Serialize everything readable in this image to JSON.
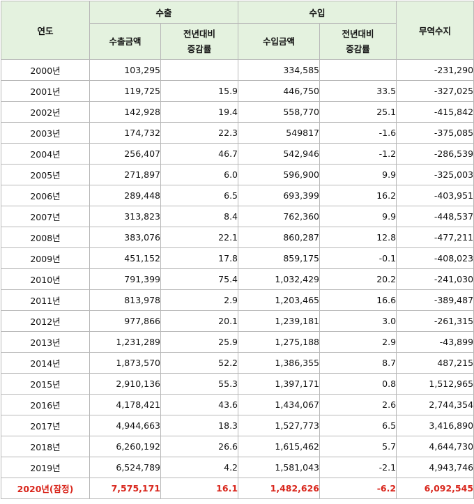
{
  "headers": {
    "year": "연도",
    "export": "수출",
    "import": "수입",
    "balance": "무역수지",
    "export_amount": "수출금액",
    "import_amount": "수입금액",
    "yoy_line1": "전년대비",
    "yoy_line2": "증감률"
  },
  "rows": [
    {
      "year": "2000년",
      "export": "103,295",
      "export_yoy": "",
      "import": "334,585",
      "import_yoy": "",
      "balance": "-231,290"
    },
    {
      "year": "2001년",
      "export": "119,725",
      "export_yoy": "15.9",
      "import": "446,750",
      "import_yoy": "33.5",
      "balance": "-327,025"
    },
    {
      "year": "2002년",
      "export": "142,928",
      "export_yoy": "19.4",
      "import": "558,770",
      "import_yoy": "25.1",
      "balance": "-415,842"
    },
    {
      "year": "2003년",
      "export": "174,732",
      "export_yoy": "22.3",
      "import": "549817",
      "import_yoy": "-1.6",
      "balance": "-375,085"
    },
    {
      "year": "2004년",
      "export": "256,407",
      "export_yoy": "46.7",
      "import": "542,946",
      "import_yoy": "-1.2",
      "balance": "-286,539"
    },
    {
      "year": "2005년",
      "export": "271,897",
      "export_yoy": "6.0",
      "import": "596,900",
      "import_yoy": "9.9",
      "balance": "-325,003"
    },
    {
      "year": "2006년",
      "export": "289,448",
      "export_yoy": "6.5",
      "import": "693,399",
      "import_yoy": "16.2",
      "balance": "-403,951"
    },
    {
      "year": "2007년",
      "export": "313,823",
      "export_yoy": "8.4",
      "import": "762,360",
      "import_yoy": "9.9",
      "balance": "-448,537"
    },
    {
      "year": "2008년",
      "export": "383,076",
      "export_yoy": "22.1",
      "import": "860,287",
      "import_yoy": "12.8",
      "balance": "-477,211"
    },
    {
      "year": "2009년",
      "export": "451,152",
      "export_yoy": "17.8",
      "import": "859,175",
      "import_yoy": "-0.1",
      "balance": "-408,023"
    },
    {
      "year": "2010년",
      "export": "791,399",
      "export_yoy": "75.4",
      "import": "1,032,429",
      "import_yoy": "20.2",
      "balance": "-241,030"
    },
    {
      "year": "2011년",
      "export": "813,978",
      "export_yoy": "2.9",
      "import": "1,203,465",
      "import_yoy": "16.6",
      "balance": "-389,487"
    },
    {
      "year": "2012년",
      "export": "977,866",
      "export_yoy": "20.1",
      "import": "1,239,181",
      "import_yoy": "3.0",
      "balance": "-261,315"
    },
    {
      "year": "2013년",
      "export": "1,231,289",
      "export_yoy": "25.9",
      "import": "1,275,188",
      "import_yoy": "2.9",
      "balance": "-43,899"
    },
    {
      "year": "2014년",
      "export": "1,873,570",
      "export_yoy": "52.2",
      "import": "1,386,355",
      "import_yoy": "8.7",
      "balance": "487,215"
    },
    {
      "year": "2015년",
      "export": "2,910,136",
      "export_yoy": "55.3",
      "import": "1,397,171",
      "import_yoy": "0.8",
      "balance": "1,512,965"
    },
    {
      "year": "2016년",
      "export": "4,178,421",
      "export_yoy": "43.6",
      "import": "1,434,067",
      "import_yoy": "2.6",
      "balance": "2,744,354"
    },
    {
      "year": "2017년",
      "export": "4,944,663",
      "export_yoy": "18.3",
      "import": "1,527,773",
      "import_yoy": "6.5",
      "balance": "3,416,890"
    },
    {
      "year": "2018년",
      "export": "6,260,192",
      "export_yoy": "26.6",
      "import": "1,615,462",
      "import_yoy": "5.7",
      "balance": "4,644,730"
    },
    {
      "year": "2019년",
      "export": "6,524,789",
      "export_yoy": "4.2",
      "import": "1,581,043",
      "import_yoy": "-2.1",
      "balance": "4,943,746"
    },
    {
      "year": "2020년(잠정)",
      "export": "7,575,171",
      "export_yoy": "16.1",
      "import": "1,482,626",
      "import_yoy": "-6.2",
      "balance": "6,092,545",
      "highlight": true
    }
  ],
  "colors": {
    "header_bg": "#e4f2df",
    "border": "#b8b8b8",
    "highlight_text": "#d9261c"
  }
}
